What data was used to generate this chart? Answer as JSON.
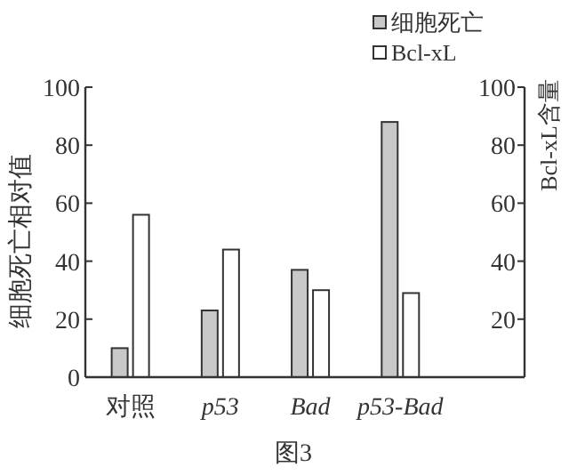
{
  "chart_data": {
    "type": "bar",
    "categories": [
      "对照",
      "p53",
      "Bad",
      "p53-Bad"
    ],
    "series": [
      {
        "name": "细胞死亡",
        "color": "#c8c8c8",
        "values": [
          10,
          23,
          37,
          88
        ]
      },
      {
        "name": "Bcl-xL",
        "color": "#ffffff",
        "values": [
          56,
          44,
          30,
          29
        ]
      }
    ],
    "ylabel": "细胞死亡相对值",
    "y2label": "Bcl-xL含量",
    "ylim": [
      0,
      100
    ],
    "yticks": [
      0,
      20,
      40,
      60,
      80,
      100
    ],
    "y2lim": [
      0,
      100
    ],
    "y2ticks": [
      20,
      40,
      60,
      80,
      100
    ],
    "legend": "top right",
    "grid": false,
    "annotations": [
      "图3"
    ]
  }
}
